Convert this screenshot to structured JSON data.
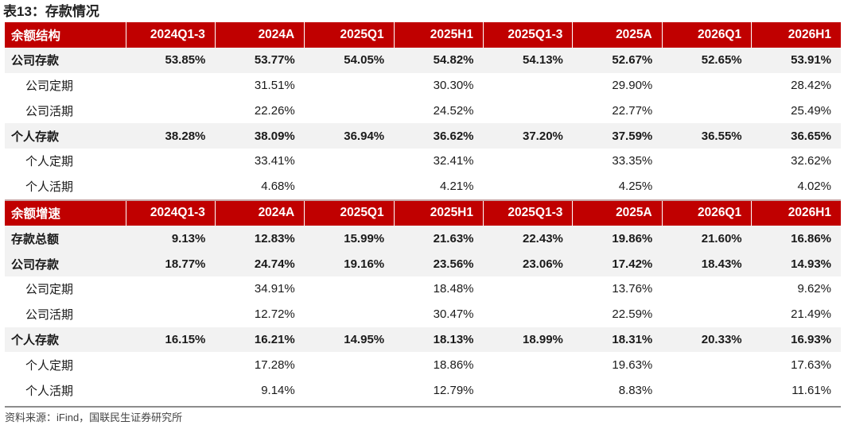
{
  "title": "表13：存款情况",
  "source": "资料来源：iFind，国联民生证券研究所",
  "sections": [
    {
      "header": [
        "余额结构",
        "2024Q1-3",
        "2024A",
        "2025Q1",
        "2025H1",
        "2025Q1-3",
        "2025A",
        "2026Q1",
        "2026H1"
      ],
      "rows": [
        {
          "bold": true,
          "cells": [
            "公司存款",
            "53.85%",
            "53.77%",
            "54.05%",
            "54.82%",
            "54.13%",
            "52.67%",
            "52.65%",
            "53.91%"
          ]
        },
        {
          "bold": false,
          "cells": [
            "公司定期",
            "",
            "31.51%",
            "",
            "30.30%",
            "",
            "29.90%",
            "",
            "28.42%"
          ]
        },
        {
          "bold": false,
          "cells": [
            "公司活期",
            "",
            "22.26%",
            "",
            "24.52%",
            "",
            "22.77%",
            "",
            "25.49%"
          ]
        },
        {
          "bold": true,
          "cells": [
            "个人存款",
            "38.28%",
            "38.09%",
            "36.94%",
            "36.62%",
            "37.20%",
            "37.59%",
            "36.55%",
            "36.65%"
          ]
        },
        {
          "bold": false,
          "cells": [
            "个人定期",
            "",
            "33.41%",
            "",
            "32.41%",
            "",
            "33.35%",
            "",
            "32.62%"
          ]
        },
        {
          "bold": false,
          "cells": [
            "个人活期",
            "",
            "4.68%",
            "",
            "4.21%",
            "",
            "4.25%",
            "",
            "4.02%"
          ]
        }
      ]
    },
    {
      "header": [
        "余额增速",
        "2024Q1-3",
        "2024A",
        "2025Q1",
        "2025H1",
        "2025Q1-3",
        "2025A",
        "2026Q1",
        "2026H1"
      ],
      "rows": [
        {
          "bold": true,
          "cells": [
            "存款总额",
            "9.13%",
            "12.83%",
            "15.99%",
            "21.63%",
            "22.43%",
            "19.86%",
            "21.60%",
            "16.86%"
          ]
        },
        {
          "bold": true,
          "cells": [
            "公司存款",
            "18.77%",
            "24.74%",
            "19.16%",
            "23.56%",
            "23.06%",
            "17.42%",
            "18.43%",
            "14.93%"
          ]
        },
        {
          "bold": false,
          "cells": [
            "公司定期",
            "",
            "34.91%",
            "",
            "18.48%",
            "",
            "13.76%",
            "",
            "9.62%"
          ]
        },
        {
          "bold": false,
          "cells": [
            "公司活期",
            "",
            "12.72%",
            "",
            "30.47%",
            "",
            "22.59%",
            "",
            "21.49%"
          ]
        },
        {
          "bold": true,
          "cells": [
            "个人存款",
            "16.15%",
            "16.21%",
            "14.95%",
            "18.13%",
            "18.99%",
            "18.31%",
            "20.33%",
            "16.93%"
          ]
        },
        {
          "bold": false,
          "cells": [
            "个人定期",
            "",
            "17.28%",
            "",
            "18.86%",
            "",
            "19.63%",
            "",
            "17.63%"
          ]
        },
        {
          "bold": false,
          "cells": [
            "个人活期",
            "",
            "9.14%",
            "",
            "12.79%",
            "",
            "8.83%",
            "",
            "11.61%"
          ]
        }
      ]
    }
  ],
  "colors": {
    "header_bg": "#c00000",
    "header_text": "#ffffff",
    "bold_row_bg": "#f2f2f2"
  }
}
